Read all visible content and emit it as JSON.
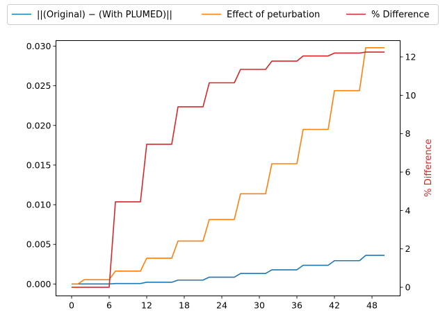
{
  "chart_data": {
    "type": "line",
    "legend": {
      "placement": "top (above plot, 3 columns)",
      "entries": [
        "||(Original) − (With PLUMED)||",
        "Effect of peturbation",
        "% Difference"
      ]
    },
    "x": [
      0,
      1,
      2,
      3,
      4,
      5,
      6,
      7,
      8,
      9,
      10,
      11,
      12,
      13,
      14,
      15,
      16,
      17,
      18,
      19,
      20,
      21,
      22,
      23,
      24,
      25,
      26,
      27,
      28,
      29,
      30,
      31,
      32,
      33,
      34,
      35,
      36,
      37,
      38,
      39,
      40,
      41,
      42,
      43,
      44,
      45,
      46,
      47,
      48,
      49,
      50
    ],
    "xticks": [
      "0",
      "6",
      "12",
      "18",
      "24",
      "30",
      "36",
      "42",
      "48"
    ],
    "xlim": [
      -2.5,
      52.5
    ],
    "left_axis": {
      "ylim": [
        -0.0015,
        0.0307
      ],
      "ticks": [
        "0.000",
        "0.005",
        "0.010",
        "0.015",
        "0.020",
        "0.025",
        "0.030"
      ]
    },
    "right_axis": {
      "ylabel": "% Difference",
      "ylim": [
        -0.45,
        12.85
      ],
      "ticks": [
        "0",
        "2",
        "4",
        "6",
        "8",
        "10",
        "12"
      ]
    },
    "series": [
      {
        "name": "||(Original) − (With PLUMED)||",
        "axis": "left",
        "color": "#1f77b4",
        "values": [
          0,
          0,
          0,
          0,
          0,
          0,
          0,
          6e-05,
          6e-05,
          6e-05,
          6e-05,
          6e-05,
          0.00022,
          0.00022,
          0.00022,
          0.00022,
          0.00022,
          0.00049,
          0.00049,
          0.00049,
          0.00049,
          0.00049,
          0.00086,
          0.00086,
          0.00086,
          0.00086,
          0.00086,
          0.00133,
          0.00133,
          0.00133,
          0.00133,
          0.00133,
          0.00179,
          0.00179,
          0.00179,
          0.00179,
          0.00179,
          0.00236,
          0.00236,
          0.00236,
          0.00236,
          0.00236,
          0.00294,
          0.00294,
          0.00294,
          0.00294,
          0.00294,
          0.00361,
          0.00361,
          0.00361,
          0.00361
        ]
      },
      {
        "name": "Effect of peturbation",
        "axis": "left",
        "color": "#ff7f0e",
        "values": [
          0,
          0,
          0.00054,
          0.00054,
          0.00054,
          0.00054,
          0.00054,
          0.00162,
          0.00162,
          0.00162,
          0.00162,
          0.00162,
          0.00325,
          0.00325,
          0.00325,
          0.00325,
          0.00325,
          0.00542,
          0.00542,
          0.00542,
          0.00542,
          0.00542,
          0.00813,
          0.00813,
          0.00813,
          0.00813,
          0.00813,
          0.01138,
          0.01138,
          0.01138,
          0.01138,
          0.01138,
          0.01517,
          0.01517,
          0.01517,
          0.01517,
          0.01517,
          0.0195,
          0.0195,
          0.0195,
          0.0195,
          0.0195,
          0.02438,
          0.02438,
          0.02438,
          0.02438,
          0.02438,
          0.0298,
          0.0298,
          0.0298,
          0.0298
        ]
      },
      {
        "name": "% Difference",
        "axis": "right",
        "color": "#d62728",
        "values": [
          0,
          0,
          0,
          0,
          0,
          0,
          0,
          4.45,
          4.45,
          4.45,
          4.45,
          4.45,
          7.45,
          7.45,
          7.45,
          7.45,
          7.45,
          9.4,
          9.4,
          9.4,
          9.4,
          9.4,
          10.65,
          10.65,
          10.65,
          10.65,
          10.65,
          11.35,
          11.35,
          11.35,
          11.35,
          11.35,
          11.78,
          11.78,
          11.78,
          11.78,
          11.78,
          12.05,
          12.05,
          12.05,
          12.05,
          12.05,
          12.2,
          12.2,
          12.2,
          12.2,
          12.2,
          12.25,
          12.25,
          12.25,
          12.25
        ]
      }
    ],
    "grid": false
  }
}
